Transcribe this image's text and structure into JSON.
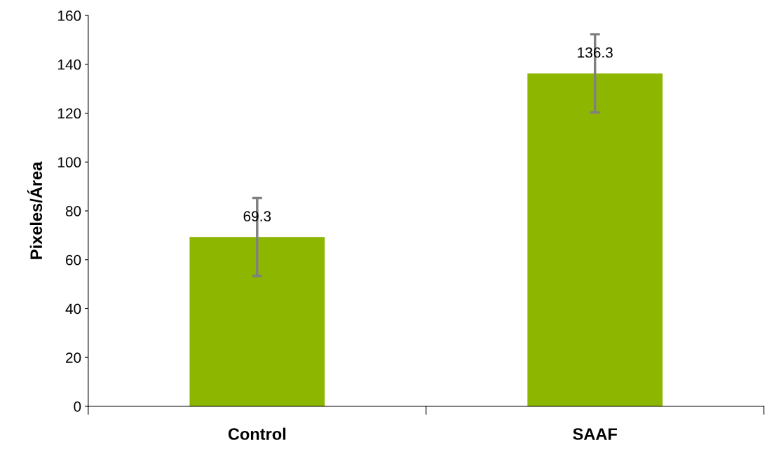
{
  "chart_data": {
    "type": "bar",
    "ylabel": "Pixeles/Área",
    "categories": [
      "Control",
      "SAAF"
    ],
    "values": [
      69.3,
      136.3
    ],
    "errors": [
      16,
      16
    ],
    "color": "#8db600",
    "data_labels": true,
    "ylim": [
      0,
      160
    ],
    "yticks": [
      0,
      20,
      40,
      60,
      80,
      100,
      120,
      140,
      160
    ],
    "grid": false,
    "legend": false
  }
}
